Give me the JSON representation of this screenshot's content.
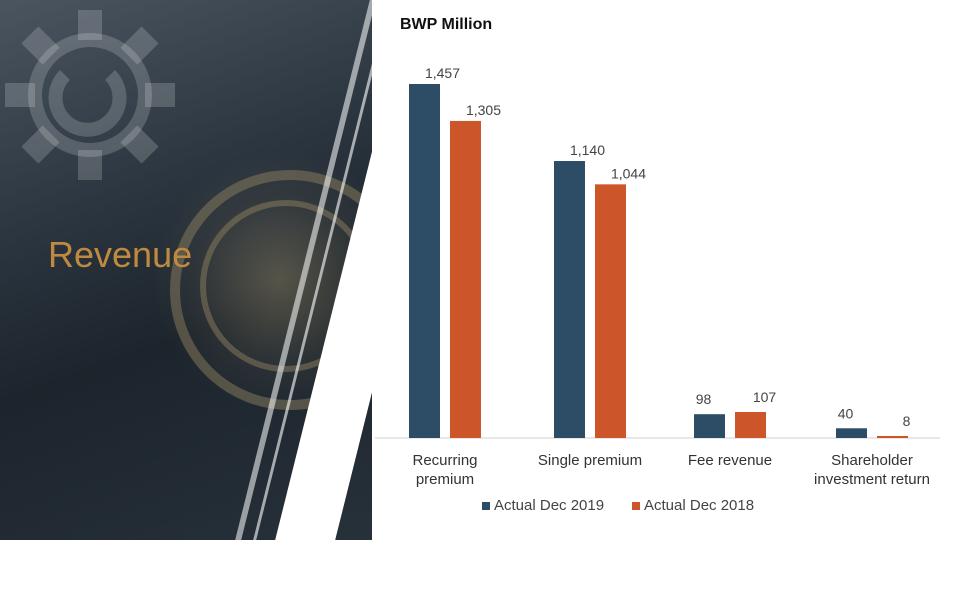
{
  "colors": {
    "series_2019": "#2d4d66",
    "series_2018": "#cc5529",
    "accent": "#c08a3e"
  },
  "slide": {
    "heading": "Revenue"
  },
  "chart_data": {
    "type": "bar",
    "title": "BWP Million",
    "categories": [
      "Recurring premium",
      "Single premium",
      "Fee revenue",
      "Shareholder investment return"
    ],
    "series": [
      {
        "name": "Actual Dec 2019",
        "values": [
          1457,
          1140,
          98,
          40
        ],
        "labels": [
          "1,457",
          "1,140",
          "98",
          "40"
        ]
      },
      {
        "name": "Actual Dec 2018",
        "values": [
          1305,
          1044,
          107,
          8
        ],
        "labels": [
          "1,305",
          "1,044",
          "107",
          "8"
        ]
      }
    ],
    "ylim": [
      0,
      1600
    ],
    "grid": false,
    "legend": "bottom"
  }
}
